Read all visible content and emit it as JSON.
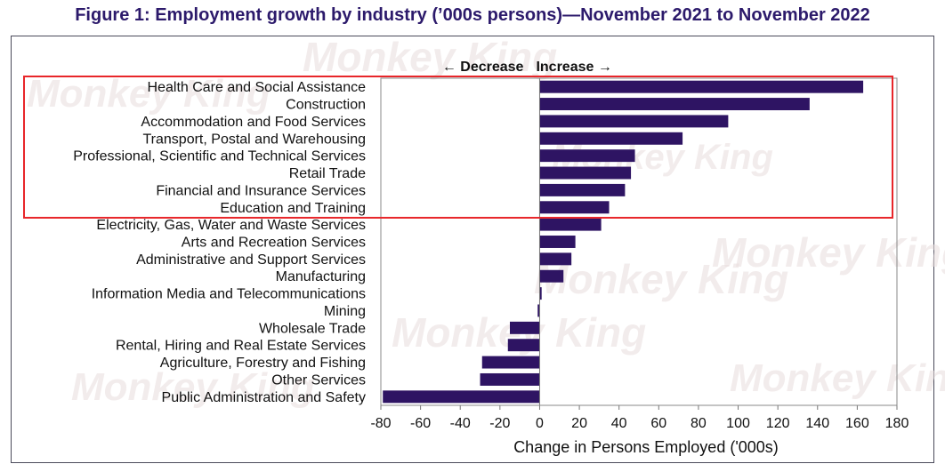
{
  "title": "Figure 1: Employment growth by industry (’000s persons)—November 2021 to November 2022",
  "watermark_text": "Monkey King",
  "chart_data": {
    "type": "bar",
    "orientation": "horizontal",
    "categories": [
      "Health Care and Social Assistance",
      "Construction",
      "Accommodation and Food Services",
      "Transport, Postal and Warehousing",
      "Professional, Scientific and Technical Services",
      "Retail Trade",
      "Financial and Insurance Services",
      "Education and Training",
      "Electricity, Gas, Water and Waste Services",
      "Arts and Recreation Services",
      "Administrative and Support Services",
      "Manufacturing",
      "Information Media and Telecommunications",
      "Mining",
      "Wholesale Trade",
      "Rental, Hiring and Real Estate Services",
      "Agriculture, Forestry and Fishing",
      "Other Services",
      "Public Administration and Safety"
    ],
    "values": [
      163,
      136,
      95,
      72,
      48,
      46,
      43,
      35,
      31,
      18,
      16,
      12,
      1,
      -1,
      -15,
      -16,
      -29,
      -30,
      -79
    ],
    "xlabel": "Change in Persons Employed ('000s)",
    "xlim": [
      -80,
      180
    ],
    "xticks": [
      -80,
      -60,
      -40,
      -20,
      0,
      20,
      40,
      60,
      80,
      100,
      120,
      140,
      160,
      180
    ],
    "decrease_label": "← Decrease",
    "increase_label": "Increase →",
    "bar_color": "#2e1463",
    "highlight": {
      "color": "#e8262a",
      "categories_from": "Health Care and Social Assistance",
      "categories_to": "Education and Training"
    }
  }
}
